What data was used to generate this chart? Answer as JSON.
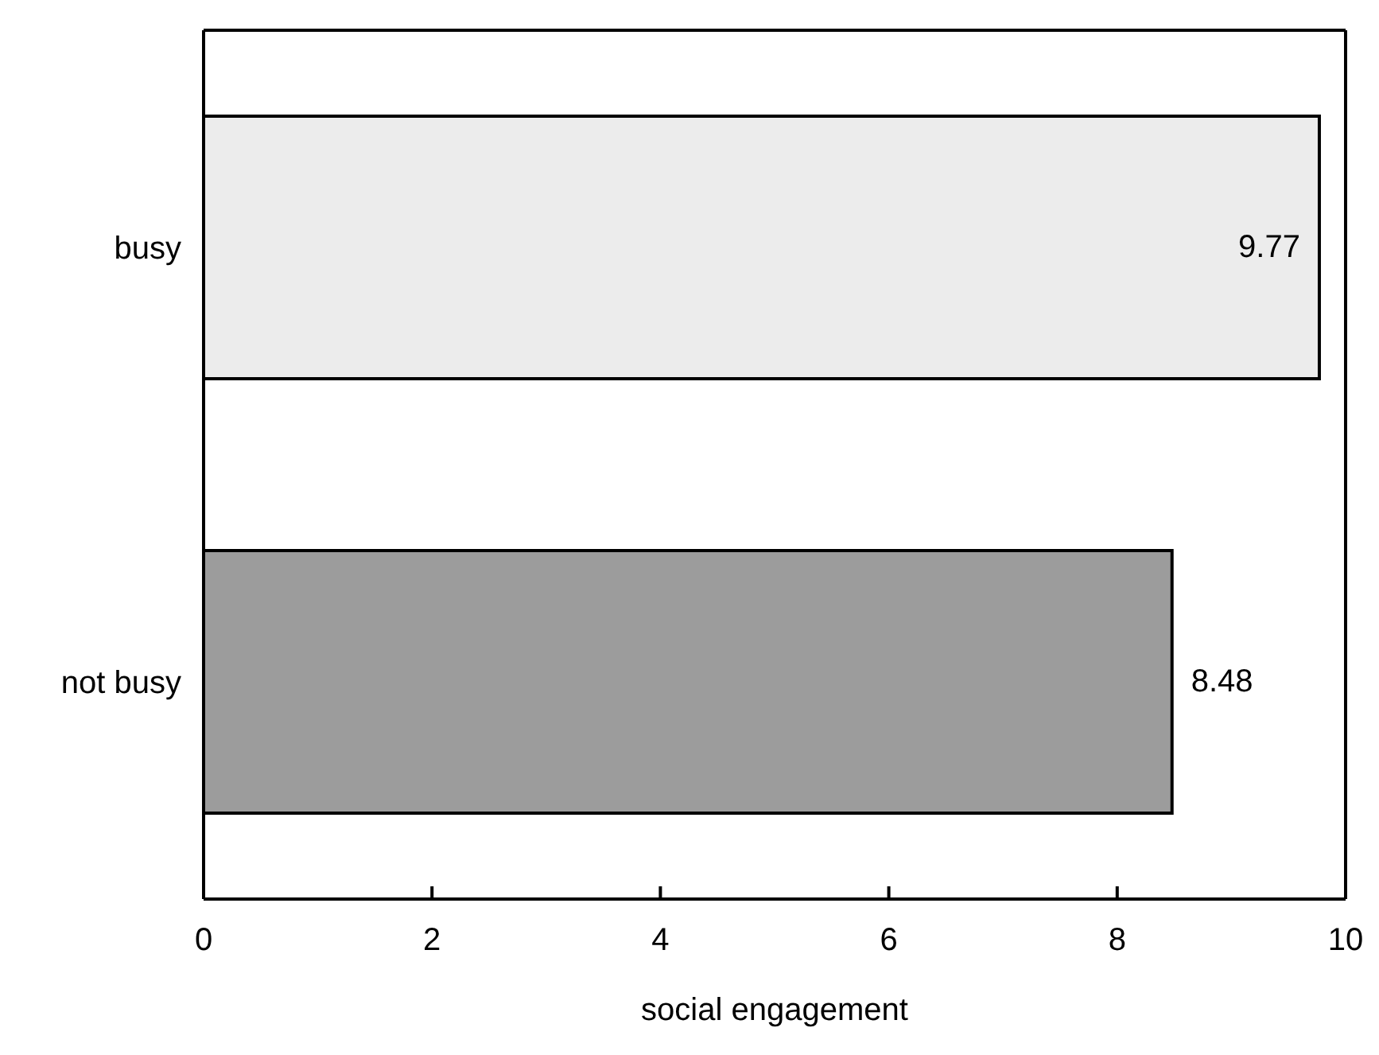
{
  "chart_data": {
    "type": "bar",
    "orientation": "horizontal",
    "xlabel": "social engagement",
    "categories": [
      "busy",
      "not busy"
    ],
    "values": [
      9.77,
      8.48
    ],
    "colors": [
      "#ececec",
      "#9c9c9c"
    ],
    "xlim": [
      0,
      10
    ],
    "xticks": [
      0,
      2,
      4,
      6,
      8,
      10
    ],
    "data_labels": true
  }
}
